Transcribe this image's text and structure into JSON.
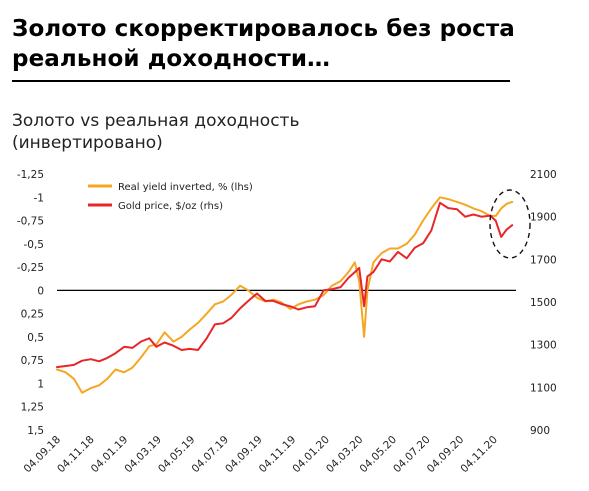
{
  "headline": {
    "line1": "Золото скорректировалось без роста",
    "line2": "реальной доходности…"
  },
  "chart_data": {
    "type": "line",
    "title_line1": "Золото vs реальная доходность",
    "title_line2": "(инвертировано)",
    "x_tick_labels": [
      "04.09.18",
      "04.11.18",
      "04.01.19",
      "04.03.19",
      "04.05.19",
      "04.07.19",
      "04.09.19",
      "04.11.19",
      "04.01.20",
      "04.03.20",
      "04.05.20",
      "04.07.20",
      "04.09.20",
      "04.11.20"
    ],
    "y_left": {
      "min": -1.25,
      "max": 1.5,
      "inverted": true,
      "ticks": [
        -1.25,
        -1,
        -0.75,
        -0.5,
        -0.25,
        0,
        0.25,
        0.5,
        0.75,
        1,
        1.25,
        1.5
      ],
      "tick_labels": [
        "-1,25",
        "-1",
        "-0,75",
        "-0,5",
        "-0,25",
        "0",
        "0,25",
        "0,5",
        "0,75",
        "1",
        "1,25",
        "1,5"
      ]
    },
    "y_right": {
      "min": 900,
      "max": 2100,
      "ticks": [
        900,
        1100,
        1300,
        1500,
        1700,
        1900,
        2100
      ],
      "tick_labels": [
        "900",
        "1100",
        "1300",
        "1500",
        "1700",
        "1900",
        "2100"
      ]
    },
    "zero_line_at_left": 0,
    "legend_position": "top-left",
    "series": [
      {
        "name": "Real yield inverted, % (lhs)",
        "axis": "left",
        "color": "#F5A623",
        "points": [
          [
            "2018-09-04",
            0.85
          ],
          [
            "2018-09-20",
            0.88
          ],
          [
            "2018-10-05",
            0.95
          ],
          [
            "2018-10-20",
            1.1
          ],
          [
            "2018-11-05",
            1.05
          ],
          [
            "2018-11-20",
            1.02
          ],
          [
            "2018-12-05",
            0.95
          ],
          [
            "2018-12-20",
            0.85
          ],
          [
            "2019-01-05",
            0.88
          ],
          [
            "2019-01-20",
            0.83
          ],
          [
            "2019-02-05",
            0.72
          ],
          [
            "2019-02-20",
            0.6
          ],
          [
            "2019-03-05",
            0.58
          ],
          [
            "2019-03-20",
            0.45
          ],
          [
            "2019-04-05",
            0.55
          ],
          [
            "2019-04-20",
            0.5
          ],
          [
            "2019-05-05",
            0.42
          ],
          [
            "2019-05-20",
            0.35
          ],
          [
            "2019-06-05",
            0.25
          ],
          [
            "2019-06-20",
            0.15
          ],
          [
            "2019-07-05",
            0.12
          ],
          [
            "2019-07-20",
            0.05
          ],
          [
            "2019-08-05",
            -0.05
          ],
          [
            "2019-08-20",
            0.0
          ],
          [
            "2019-09-05",
            0.08
          ],
          [
            "2019-09-20",
            0.12
          ],
          [
            "2019-10-05",
            0.1
          ],
          [
            "2019-10-20",
            0.13
          ],
          [
            "2019-11-05",
            0.2
          ],
          [
            "2019-11-20",
            0.15
          ],
          [
            "2019-12-05",
            0.12
          ],
          [
            "2019-12-20",
            0.1
          ],
          [
            "2020-01-05",
            0.05
          ],
          [
            "2020-01-20",
            -0.05
          ],
          [
            "2020-02-05",
            -0.1
          ],
          [
            "2020-02-20",
            -0.2
          ],
          [
            "2020-03-02",
            -0.3
          ],
          [
            "2020-03-10",
            -0.1
          ],
          [
            "2020-03-19",
            0.5
          ],
          [
            "2020-03-25",
            0.0
          ],
          [
            "2020-04-05",
            -0.3
          ],
          [
            "2020-04-20",
            -0.4
          ],
          [
            "2020-05-05",
            -0.45
          ],
          [
            "2020-05-20",
            -0.45
          ],
          [
            "2020-06-05",
            -0.5
          ],
          [
            "2020-06-20",
            -0.6
          ],
          [
            "2020-07-05",
            -0.75
          ],
          [
            "2020-07-20",
            -0.88
          ],
          [
            "2020-08-05",
            -1.0
          ],
          [
            "2020-08-20",
            -0.98
          ],
          [
            "2020-09-05",
            -0.95
          ],
          [
            "2020-09-20",
            -0.92
          ],
          [
            "2020-10-05",
            -0.88
          ],
          [
            "2020-10-20",
            -0.85
          ],
          [
            "2020-11-05",
            -0.8
          ],
          [
            "2020-11-15",
            -0.8
          ],
          [
            "2020-11-25",
            -0.88
          ],
          [
            "2020-12-05",
            -0.93
          ],
          [
            "2020-12-15",
            -0.95
          ]
        ]
      },
      {
        "name": "Gold price, $/oz (rhs)",
        "axis": "right",
        "color": "#E8262A",
        "points": [
          [
            "2018-09-04",
            1195
          ],
          [
            "2018-09-20",
            1200
          ],
          [
            "2018-10-05",
            1205
          ],
          [
            "2018-10-20",
            1225
          ],
          [
            "2018-11-05",
            1232
          ],
          [
            "2018-11-20",
            1222
          ],
          [
            "2018-12-05",
            1238
          ],
          [
            "2018-12-20",
            1260
          ],
          [
            "2019-01-05",
            1290
          ],
          [
            "2019-01-20",
            1285
          ],
          [
            "2019-02-05",
            1315
          ],
          [
            "2019-02-20",
            1330
          ],
          [
            "2019-03-05",
            1290
          ],
          [
            "2019-03-20",
            1310
          ],
          [
            "2019-04-05",
            1295
          ],
          [
            "2019-04-20",
            1275
          ],
          [
            "2019-05-05",
            1280
          ],
          [
            "2019-05-20",
            1275
          ],
          [
            "2019-06-05",
            1330
          ],
          [
            "2019-06-20",
            1395
          ],
          [
            "2019-07-05",
            1400
          ],
          [
            "2019-07-20",
            1425
          ],
          [
            "2019-08-05",
            1470
          ],
          [
            "2019-08-20",
            1505
          ],
          [
            "2019-09-05",
            1540
          ],
          [
            "2019-09-20",
            1505
          ],
          [
            "2019-10-05",
            1505
          ],
          [
            "2019-10-20",
            1490
          ],
          [
            "2019-11-05",
            1480
          ],
          [
            "2019-11-20",
            1465
          ],
          [
            "2019-12-05",
            1475
          ],
          [
            "2019-12-20",
            1480
          ],
          [
            "2020-01-05",
            1555
          ],
          [
            "2020-01-20",
            1560
          ],
          [
            "2020-02-05",
            1570
          ],
          [
            "2020-02-20",
            1615
          ],
          [
            "2020-03-02",
            1640
          ],
          [
            "2020-03-10",
            1660
          ],
          [
            "2020-03-19",
            1480
          ],
          [
            "2020-03-25",
            1620
          ],
          [
            "2020-04-05",
            1640
          ],
          [
            "2020-04-20",
            1700
          ],
          [
            "2020-05-05",
            1690
          ],
          [
            "2020-05-20",
            1735
          ],
          [
            "2020-06-05",
            1705
          ],
          [
            "2020-06-20",
            1755
          ],
          [
            "2020-07-05",
            1775
          ],
          [
            "2020-07-20",
            1835
          ],
          [
            "2020-08-05",
            1965
          ],
          [
            "2020-08-20",
            1940
          ],
          [
            "2020-09-05",
            1935
          ],
          [
            "2020-09-20",
            1900
          ],
          [
            "2020-10-05",
            1910
          ],
          [
            "2020-10-20",
            1900
          ],
          [
            "2020-11-05",
            1905
          ],
          [
            "2020-11-15",
            1880
          ],
          [
            "2020-11-25",
            1805
          ],
          [
            "2020-12-05",
            1840
          ],
          [
            "2020-12-15",
            1860
          ]
        ]
      }
    ],
    "annotation": "dashed ellipse around late-2020 divergence"
  }
}
